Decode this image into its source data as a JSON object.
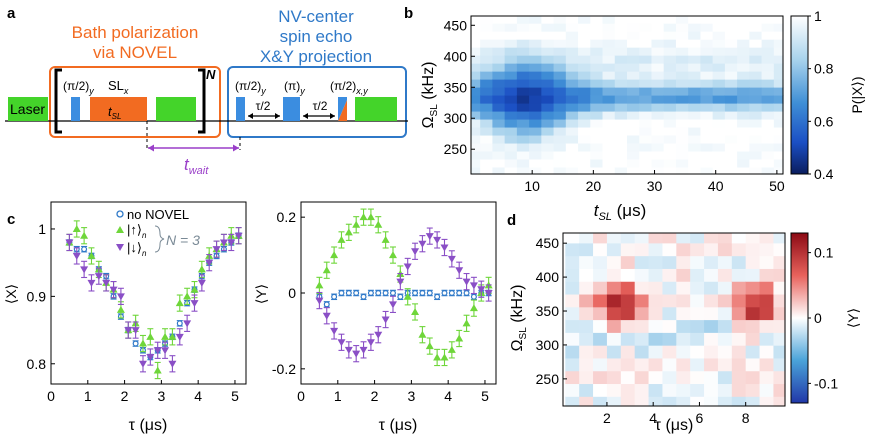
{
  "colors": {
    "orange": "#f26b21",
    "blue": "#2f79c8",
    "green": "#44d42a",
    "grn_pts": "#6fd63a",
    "purple": "#8a4fc6",
    "pulse_blue": "#3b8de0",
    "wait_purple": "#9a3fc9",
    "gray_text": "#7a8a96"
  },
  "panel_a": {
    "label": "a",
    "bath_title_1": "Bath polarization",
    "bath_title_2": "via NOVEL",
    "nv_title_1": "NV-center",
    "nv_title_2": "spin echo",
    "nv_title_3": "X&Y projection",
    "laser": "Laser",
    "repeat": "N",
    "pi2": "(π/2)",
    "y_sub": "y",
    "pi": "(π)",
    "xy_sub": "x,y",
    "sl": "SL",
    "sl_sub": "x",
    "tsl": "t",
    "tsl_sub": "SL",
    "tau2": "τ/2",
    "twait": "t",
    "twait_sub": "wait"
  },
  "panel_b": {
    "label": "b",
    "xlabel": "t",
    "xlabel_sub": "SL",
    "xlabel_unit": " (μs)",
    "ylabel": "Ω",
    "ylabel_sub": "SL",
    "ylabel_unit": " (kHz)",
    "cbar_label": "P(|X⟩)",
    "xticks": [
      "10",
      "20",
      "30",
      "40",
      "50"
    ],
    "yticks": [
      "250",
      "300",
      "350",
      "400",
      "450"
    ],
    "cticks": [
      "1",
      "0.8",
      "0.6",
      "0.4"
    ]
  },
  "panel_c": {
    "label": "c",
    "left_ylabel": "⟨X⟩",
    "right_ylabel": "⟨Y⟩",
    "xlabel": "τ (μs)",
    "legend_novel": "no NOVEL",
    "legend_up": "|↑⟩",
    "legend_down": "|↓⟩",
    "legend_n": "n",
    "legend_N": "N = 3",
    "left_xticks": [
      "0",
      "1",
      "2",
      "3",
      "4",
      "5"
    ],
    "right_xticks": [
      "0",
      "1",
      "2",
      "3",
      "4",
      "5"
    ],
    "left_yticks": [
      "1",
      "0.9",
      "0.8"
    ],
    "right_yticks": [
      "0.2",
      "0",
      "-0.2"
    ]
  },
  "panel_d": {
    "label": "d",
    "xlabel": "τ (μs)",
    "ylabel": "Ω",
    "ylabel_sub": "SL",
    "ylabel_unit": " (kHz)",
    "cbar_label": "⟨Y⟩",
    "xticks": [
      "2",
      "4",
      "6",
      "8"
    ],
    "yticks": [
      "250",
      "300",
      "350",
      "400",
      "450"
    ],
    "cticks": [
      "0.1",
      "0",
      "-0.1"
    ]
  },
  "chart_data": [
    {
      "type": "heatmap",
      "panel": "b",
      "xlabel": "t_SL (μs)",
      "ylabel": "Ω_SL (kHz)",
      "colorbar": "P(|X⟩)",
      "xlim": [
        0,
        51
      ],
      "ylim": [
        210,
        465
      ],
      "clim": [
        0.4,
        1.0
      ],
      "x_start": 0.5,
      "x_end": 50.5,
      "nx": 26,
      "y_start": 215,
      "y_end": 460,
      "ny": 20,
      "dip_center_kHz": 335,
      "dip_min_value": 0.42,
      "note": "broad minimum near t_SL≈8 μs, narrow band persisting to 50 μs around 330-345 kHz"
    },
    {
      "type": "scatter",
      "panel": "c-left",
      "ylabel": "⟨X⟩",
      "xlabel": "τ (μs)",
      "xlim": [
        0,
        5.3
      ],
      "ylim": [
        0.77,
        1.04
      ],
      "series": [
        {
          "name": "no NOVEL",
          "x": [
            0.5,
            0.7,
            0.9,
            1.1,
            1.3,
            1.5,
            1.7,
            1.9,
            2.1,
            2.3,
            2.5,
            2.7,
            2.9,
            3.1,
            3.3,
            3.5,
            3.7,
            3.9,
            4.1,
            4.3,
            4.5,
            4.7,
            4.9,
            5.1
          ],
          "values": [
            0.98,
            0.97,
            0.97,
            0.96,
            0.94,
            0.93,
            0.9,
            0.87,
            0.85,
            0.83,
            0.82,
            0.81,
            0.82,
            0.83,
            0.84,
            0.86,
            0.89,
            0.91,
            0.93,
            0.95,
            0.96,
            0.97,
            0.98,
            0.99
          ]
        },
        {
          "name": "|↑⟩n",
          "x": [
            0.5,
            0.7,
            0.9,
            1.1,
            1.3,
            1.5,
            1.7,
            1.9,
            2.1,
            2.3,
            2.5,
            2.7,
            2.9,
            3.1,
            3.3,
            3.5,
            3.7,
            3.9,
            4.1,
            4.3,
            4.5,
            4.7,
            4.9,
            5.1
          ],
          "values": [
            0.98,
            1.0,
            0.99,
            0.96,
            0.94,
            0.92,
            0.91,
            0.88,
            0.85,
            0.86,
            0.83,
            0.84,
            0.79,
            0.84,
            0.84,
            0.89,
            0.9,
            0.91,
            0.94,
            0.96,
            0.97,
            0.98,
            0.99,
            0.99
          ]
        },
        {
          "name": "|↓⟩n",
          "x": [
            0.5,
            0.7,
            0.9,
            1.1,
            1.3,
            1.5,
            1.7,
            1.9,
            2.1,
            2.3,
            2.5,
            2.7,
            2.9,
            3.1,
            3.3,
            3.5,
            3.7,
            3.9,
            4.1,
            4.3,
            4.5,
            4.7,
            4.9,
            5.1
          ],
          "values": [
            0.98,
            0.96,
            0.94,
            0.92,
            0.93,
            0.92,
            0.91,
            0.9,
            0.85,
            0.85,
            0.8,
            0.81,
            0.82,
            0.82,
            0.8,
            0.84,
            0.86,
            0.89,
            0.92,
            0.95,
            0.97,
            0.98,
            0.98,
            0.99
          ]
        }
      ]
    },
    {
      "type": "scatter",
      "panel": "c-right",
      "ylabel": "⟨Y⟩",
      "xlabel": "τ (μs)",
      "xlim": [
        0,
        5.3
      ],
      "ylim": [
        -0.24,
        0.24
      ],
      "series": [
        {
          "name": "no NOVEL",
          "x": [
            0.5,
            0.7,
            0.9,
            1.1,
            1.3,
            1.5,
            1.7,
            1.9,
            2.1,
            2.3,
            2.5,
            2.7,
            2.9,
            3.1,
            3.3,
            3.5,
            3.7,
            3.9,
            4.1,
            4.3,
            4.5,
            4.7,
            4.9,
            5.1
          ],
          "values": [
            -0.01,
            -0.03,
            -0.01,
            0.0,
            0.0,
            0.0,
            -0.01,
            0.0,
            0.0,
            0.0,
            0.0,
            -0.01,
            0.0,
            0.0,
            0.0,
            0.0,
            -0.01,
            0.0,
            0.0,
            0.0,
            0.0,
            -0.01,
            0.0,
            0.0
          ]
        },
        {
          "name": "|↑⟩n",
          "x": [
            0.5,
            0.7,
            0.9,
            1.1,
            1.3,
            1.5,
            1.7,
            1.9,
            2.1,
            2.3,
            2.5,
            2.7,
            2.9,
            3.1,
            3.3,
            3.5,
            3.7,
            3.9,
            4.1,
            4.3,
            4.5,
            4.7,
            4.9,
            5.1
          ],
          "values": [
            0.02,
            0.06,
            0.1,
            0.14,
            0.16,
            0.18,
            0.2,
            0.2,
            0.18,
            0.14,
            0.1,
            0.05,
            -0.01,
            -0.05,
            -0.11,
            -0.14,
            -0.17,
            -0.17,
            -0.15,
            -0.12,
            -0.08,
            -0.04,
            0.0,
            0.02
          ]
        },
        {
          "name": "|↓⟩n",
          "x": [
            0.5,
            0.7,
            0.9,
            1.1,
            1.3,
            1.5,
            1.7,
            1.9,
            2.1,
            2.3,
            2.5,
            2.7,
            2.9,
            3.1,
            3.3,
            3.5,
            3.7,
            3.9,
            4.1,
            4.3,
            4.5,
            4.7,
            4.9,
            5.1
          ],
          "values": [
            -0.02,
            -0.06,
            -0.1,
            -0.13,
            -0.15,
            -0.16,
            -0.15,
            -0.13,
            -0.11,
            -0.07,
            -0.03,
            0.03,
            0.07,
            0.11,
            0.13,
            0.15,
            0.14,
            0.12,
            0.09,
            0.06,
            0.03,
            0.02,
            0.01,
            0.0
          ]
        }
      ]
    },
    {
      "type": "heatmap",
      "panel": "d",
      "xlabel": "τ (μs)",
      "ylabel": "Ω_SL (kHz)",
      "colorbar": "⟨Y⟩",
      "xlim": [
        0.1,
        9.7
      ],
      "ylim": [
        210,
        465
      ],
      "clim": [
        -0.13,
        0.13
      ],
      "x_start": 0.5,
      "x_end": 9.5,
      "nx": 16,
      "y_start": 215,
      "y_end": 460,
      "ny": 14,
      "peaks": [
        {
          "tau": 2.5,
          "omega": 360,
          "value": 0.12
        },
        {
          "tau": 8.5,
          "omega": 355,
          "value": 0.11
        }
      ]
    }
  ]
}
